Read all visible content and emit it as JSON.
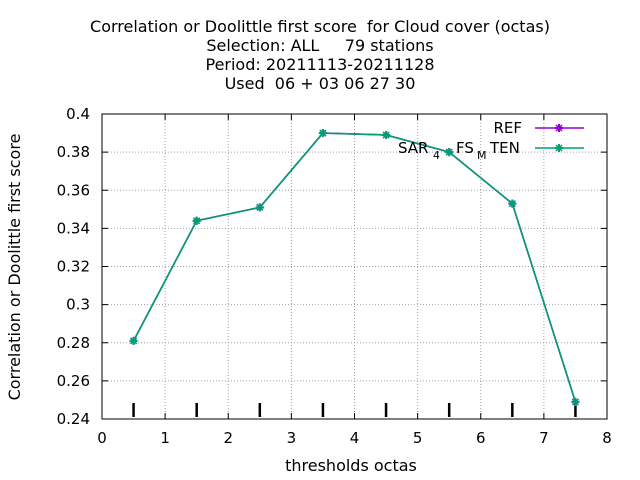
{
  "title_lines": [
    "Correlation or Doolittle first score  for Cloud cover (octas)",
    "Selection: ALL     79 stations",
    "Period: 20211113-20211128",
    "Used  06 + 03 06 27 30"
  ],
  "colors": {
    "REF": "#9400d3",
    "SAR_FS_M_TEN": "#009e73"
  },
  "chart_data": {
    "type": "line",
    "xlabel": "thresholds octas",
    "ylabel": "Correlation or Doolittle first score",
    "xlim": [
      0,
      8
    ],
    "ylim": [
      0.24,
      0.4
    ],
    "xticks": [
      "0",
      "1",
      "2",
      "3",
      "4",
      "5",
      "6",
      "7",
      "8"
    ],
    "yticks": [
      "0.24",
      "0.26",
      "0.28",
      "0.3",
      "0.32",
      "0.34",
      "0.36",
      "0.38",
      "0.4"
    ],
    "grid": true,
    "legend_position": "top-right",
    "x": [
      0.5,
      1.5,
      2.5,
      3.5,
      4.5,
      5.5,
      6.5,
      7.5
    ],
    "series": [
      {
        "name": "REF",
        "color": "#9400d3",
        "values": [
          0.281,
          0.344,
          0.351,
          0.39,
          0.389,
          0.38,
          0.353,
          0.249
        ]
      },
      {
        "name": "SAR_FS_M_TEN",
        "color": "#009e73",
        "values": [
          0.281,
          0.344,
          0.351,
          0.39,
          0.389,
          0.38,
          0.353,
          0.249
        ]
      }
    ],
    "legend_labels": [
      {
        "text": "REF",
        "parts": [
          "REF"
        ]
      },
      {
        "text": "SAR_FS_M_TEN",
        "parts": [
          "SAR",
          "4",
          "FS",
          "M",
          "TEN"
        ]
      }
    ],
    "threshold_marks_x": [
      0.5,
      1.5,
      2.5,
      3.5,
      4.5,
      5.5,
      6.5,
      7.5
    ]
  }
}
